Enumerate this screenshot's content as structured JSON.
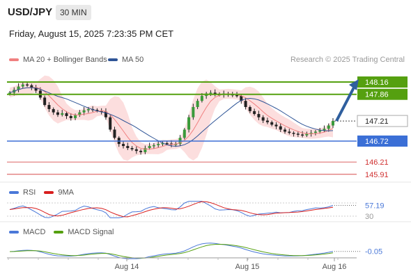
{
  "header": {
    "pair": "USD/JPY",
    "timeframe": "30 MIN",
    "datetime": "Friday, August 15, 2025 7:23:35 PM CET"
  },
  "legend": {
    "ma20": "MA 20 + Bollinger Bands",
    "ma50": "MA 50",
    "credit": "Research © 2025 Trading Central"
  },
  "colors": {
    "ma20": "#f08080",
    "ma50": "#2f5597",
    "green": "#55a010",
    "blue": "#3b6fd6",
    "red": "#d03030",
    "band": "#fbd3d3"
  },
  "chart_data": [
    {
      "type": "candlestick",
      "title": "USD/JPY",
      "x_tick_labels": [
        "Aug 14",
        "Aug 15",
        "Aug 16"
      ],
      "price_levels": [
        {
          "value": 148.16,
          "label": "148.16",
          "kind": "resistance"
        },
        {
          "value": 147.86,
          "label": "147.86",
          "kind": "resistance"
        },
        {
          "value": 147.21,
          "label": "147.21",
          "kind": "last"
        },
        {
          "value": 146.72,
          "label": "146.72",
          "kind": "support"
        },
        {
          "value": 146.21,
          "label": "146.21",
          "kind": "support"
        },
        {
          "value": 145.91,
          "label": "145.91",
          "kind": "support"
        }
      ],
      "close_path": [
        147.9,
        147.97,
        148.05,
        148.1,
        148.08,
        148.03,
        147.95,
        147.78,
        147.6,
        147.5,
        147.42,
        147.36,
        147.4,
        147.33,
        147.28,
        147.35,
        147.42,
        147.47,
        147.5,
        147.48,
        147.46,
        147.44,
        147.3,
        147.0,
        146.8,
        146.65,
        146.6,
        146.55,
        146.52,
        146.48,
        146.45,
        146.55,
        146.6,
        146.62,
        146.65,
        146.67,
        146.66,
        146.64,
        146.65,
        146.8,
        147.0,
        147.3,
        147.55,
        147.7,
        147.82,
        147.88,
        147.9,
        147.86,
        147.85,
        147.88,
        147.86,
        147.84,
        147.82,
        147.7,
        147.55,
        147.45,
        147.38,
        147.3,
        147.22,
        147.18,
        147.12,
        147.08,
        147.0,
        146.95,
        146.92,
        146.9,
        146.88,
        146.86,
        146.9,
        146.92,
        146.95,
        146.98,
        147.02,
        147.1,
        147.21
      ],
      "projection_target": 148.16
    },
    {
      "type": "line",
      "title": "RSI",
      "series": [
        {
          "name": "RSI"
        },
        {
          "name": "9MA"
        }
      ],
      "levels": [
        "70",
        "30"
      ],
      "last_value": "57.19"
    },
    {
      "type": "line",
      "title": "MACD",
      "series": [
        {
          "name": "MACD"
        },
        {
          "name": "MACD Signal"
        }
      ],
      "last_value": "-0.05"
    }
  ]
}
